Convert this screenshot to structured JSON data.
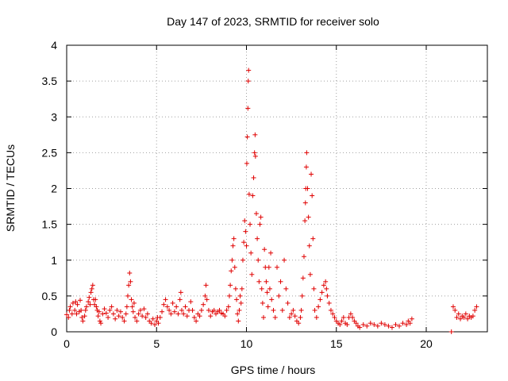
{
  "chart_data": {
    "type": "scatter",
    "title": "Day 147 of 2023, SRMTID for receiver solo",
    "xlabel": "GPS time / hours",
    "ylabel": "SRMTID / TECUs",
    "xlim": [
      0,
      23.4
    ],
    "ylim": [
      0,
      4
    ],
    "xticks": [
      0,
      5,
      10,
      15,
      20
    ],
    "yticks": [
      0,
      0.5,
      1,
      1.5,
      2,
      2.5,
      3,
      3.5,
      4
    ],
    "xtick_labels": [
      "0",
      "5",
      "10",
      "15",
      "20"
    ],
    "ytick_labels": [
      "0",
      "0.5",
      "1",
      "1.5",
      "2",
      "2.5",
      "3",
      "3.5",
      "4"
    ],
    "grid": true,
    "marker": "+",
    "color": "#e00000",
    "series": [
      {
        "name": "SRMTID",
        "points": [
          [
            0.0,
            0.24
          ],
          [
            0.1,
            0.2
          ],
          [
            0.15,
            0.3
          ],
          [
            0.2,
            0.35
          ],
          [
            0.3,
            0.25
          ],
          [
            0.35,
            0.4
          ],
          [
            0.45,
            0.3
          ],
          [
            0.5,
            0.42
          ],
          [
            0.55,
            0.25
          ],
          [
            0.6,
            0.38
          ],
          [
            0.7,
            0.28
          ],
          [
            0.75,
            0.44
          ],
          [
            0.8,
            0.3
          ],
          [
            0.85,
            0.2
          ],
          [
            0.9,
            0.15
          ],
          [
            1.0,
            0.22
          ],
          [
            1.05,
            0.3
          ],
          [
            1.1,
            0.35
          ],
          [
            1.2,
            0.42
          ],
          [
            1.25,
            0.48
          ],
          [
            1.3,
            0.38
          ],
          [
            1.35,
            0.55
          ],
          [
            1.4,
            0.6
          ],
          [
            1.45,
            0.65
          ],
          [
            1.5,
            0.45
          ],
          [
            1.55,
            0.38
          ],
          [
            1.6,
            0.45
          ],
          [
            1.65,
            0.35
          ],
          [
            1.7,
            0.3
          ],
          [
            1.75,
            0.22
          ],
          [
            1.8,
            0.28
          ],
          [
            1.85,
            0.15
          ],
          [
            1.9,
            0.12
          ],
          [
            2.0,
            0.25
          ],
          [
            2.1,
            0.32
          ],
          [
            2.2,
            0.26
          ],
          [
            2.3,
            0.2
          ],
          [
            2.4,
            0.3
          ],
          [
            2.5,
            0.35
          ],
          [
            2.6,
            0.25
          ],
          [
            2.7,
            0.18
          ],
          [
            2.8,
            0.3
          ],
          [
            2.9,
            0.22
          ],
          [
            3.0,
            0.28
          ],
          [
            3.1,
            0.2
          ],
          [
            3.2,
            0.15
          ],
          [
            3.3,
            0.25
          ],
          [
            3.35,
            0.35
          ],
          [
            3.4,
            0.5
          ],
          [
            3.45,
            0.65
          ],
          [
            3.5,
            0.82
          ],
          [
            3.55,
            0.7
          ],
          [
            3.6,
            0.45
          ],
          [
            3.65,
            0.35
          ],
          [
            3.7,
            0.28
          ],
          [
            3.75,
            0.4
          ],
          [
            3.8,
            0.2
          ],
          [
            3.9,
            0.15
          ],
          [
            4.0,
            0.25
          ],
          [
            4.1,
            0.3
          ],
          [
            4.2,
            0.22
          ],
          [
            4.3,
            0.32
          ],
          [
            4.4,
            0.2
          ],
          [
            4.5,
            0.25
          ],
          [
            4.6,
            0.15
          ],
          [
            4.7,
            0.12
          ],
          [
            4.8,
            0.18
          ],
          [
            4.9,
            0.1
          ],
          [
            5.0,
            0.15
          ],
          [
            5.05,
            0.2
          ],
          [
            5.1,
            0.12
          ],
          [
            5.2,
            0.2
          ],
          [
            5.3,
            0.28
          ],
          [
            5.4,
            0.38
          ],
          [
            5.5,
            0.45
          ],
          [
            5.6,
            0.35
          ],
          [
            5.7,
            0.3
          ],
          [
            5.8,
            0.25
          ],
          [
            5.9,
            0.4
          ],
          [
            6.0,
            0.28
          ],
          [
            6.1,
            0.35
          ],
          [
            6.2,
            0.25
          ],
          [
            6.3,
            0.45
          ],
          [
            6.35,
            0.55
          ],
          [
            6.4,
            0.3
          ],
          [
            6.5,
            0.25
          ],
          [
            6.6,
            0.35
          ],
          [
            6.7,
            0.22
          ],
          [
            6.8,
            0.3
          ],
          [
            6.9,
            0.42
          ],
          [
            7.0,
            0.3
          ],
          [
            7.1,
            0.2
          ],
          [
            7.2,
            0.15
          ],
          [
            7.3,
            0.25
          ],
          [
            7.4,
            0.22
          ],
          [
            7.5,
            0.3
          ],
          [
            7.6,
            0.38
          ],
          [
            7.7,
            0.5
          ],
          [
            7.75,
            0.65
          ],
          [
            7.8,
            0.45
          ],
          [
            7.9,
            0.3
          ],
          [
            8.0,
            0.22
          ],
          [
            8.1,
            0.28
          ],
          [
            8.2,
            0.3
          ],
          [
            8.3,
            0.25
          ],
          [
            8.4,
            0.28
          ],
          [
            8.5,
            0.3
          ],
          [
            8.6,
            0.26
          ],
          [
            8.7,
            0.25
          ],
          [
            8.8,
            0.22
          ],
          [
            8.9,
            0.3
          ],
          [
            9.0,
            0.35
          ],
          [
            9.05,
            0.5
          ],
          [
            9.1,
            0.65
          ],
          [
            9.15,
            0.85
          ],
          [
            9.2,
            1.0
          ],
          [
            9.25,
            1.2
          ],
          [
            9.3,
            1.3
          ],
          [
            9.35,
            0.9
          ],
          [
            9.4,
            0.6
          ],
          [
            9.45,
            0.45
          ],
          [
            9.5,
            0.25
          ],
          [
            9.55,
            0.15
          ],
          [
            9.6,
            0.3
          ],
          [
            9.65,
            0.5
          ],
          [
            9.7,
            0.4
          ],
          [
            9.75,
            0.6
          ],
          [
            9.8,
            1.0
          ],
          [
            9.85,
            1.25
          ],
          [
            9.9,
            1.55
          ],
          [
            9.95,
            1.4
          ],
          [
            10.0,
            1.2
          ],
          [
            10.02,
            2.35
          ],
          [
            10.05,
            2.72
          ],
          [
            10.08,
            3.12
          ],
          [
            10.1,
            3.5
          ],
          [
            10.12,
            3.65
          ],
          [
            10.15,
            1.92
          ],
          [
            10.2,
            1.5
          ],
          [
            10.25,
            1.1
          ],
          [
            10.3,
            0.8
          ],
          [
            10.35,
            1.9
          ],
          [
            10.4,
            2.15
          ],
          [
            10.45,
            2.5
          ],
          [
            10.48,
            2.75
          ],
          [
            10.5,
            2.45
          ],
          [
            10.55,
            1.65
          ],
          [
            10.6,
            1.3
          ],
          [
            10.65,
            1.0
          ],
          [
            10.7,
            0.7
          ],
          [
            10.75,
            1.5
          ],
          [
            10.8,
            1.6
          ],
          [
            10.85,
            0.6
          ],
          [
            10.9,
            0.4
          ],
          [
            10.95,
            0.2
          ],
          [
            11.0,
            1.15
          ],
          [
            11.05,
            0.9
          ],
          [
            11.1,
            0.7
          ],
          [
            11.15,
            0.55
          ],
          [
            11.2,
            0.35
          ],
          [
            11.25,
            0.9
          ],
          [
            11.3,
            0.6
          ],
          [
            11.35,
            1.1
          ],
          [
            11.4,
            0.45
          ],
          [
            11.5,
            0.3
          ],
          [
            11.6,
            0.2
          ],
          [
            11.7,
            0.9
          ],
          [
            11.8,
            0.5
          ],
          [
            11.9,
            0.7
          ],
          [
            12.0,
            0.3
          ],
          [
            12.1,
            1.0
          ],
          [
            12.2,
            0.6
          ],
          [
            12.3,
            0.4
          ],
          [
            12.4,
            0.2
          ],
          [
            12.5,
            0.25
          ],
          [
            12.6,
            0.3
          ],
          [
            12.7,
            0.22
          ],
          [
            12.8,
            0.15
          ],
          [
            12.9,
            0.12
          ],
          [
            13.0,
            0.2
          ],
          [
            13.05,
            0.3
          ],
          [
            13.1,
            0.5
          ],
          [
            13.15,
            0.75
          ],
          [
            13.2,
            1.05
          ],
          [
            13.25,
            1.55
          ],
          [
            13.28,
            1.8
          ],
          [
            13.3,
            2.0
          ],
          [
            13.33,
            2.3
          ],
          [
            13.35,
            2.5
          ],
          [
            13.4,
            2.0
          ],
          [
            13.45,
            1.6
          ],
          [
            13.5,
            1.2
          ],
          [
            13.55,
            0.8
          ],
          [
            13.6,
            2.2
          ],
          [
            13.65,
            1.9
          ],
          [
            13.7,
            1.3
          ],
          [
            13.75,
            0.6
          ],
          [
            13.8,
            0.3
          ],
          [
            13.9,
            0.2
          ],
          [
            14.0,
            0.35
          ],
          [
            14.1,
            0.45
          ],
          [
            14.2,
            0.55
          ],
          [
            14.3,
            0.65
          ],
          [
            14.4,
            0.7
          ],
          [
            14.45,
            0.6
          ],
          [
            14.5,
            0.5
          ],
          [
            14.6,
            0.4
          ],
          [
            14.7,
            0.3
          ],
          [
            14.8,
            0.25
          ],
          [
            14.9,
            0.2
          ],
          [
            15.0,
            0.15
          ],
          [
            15.1,
            0.12
          ],
          [
            15.2,
            0.1
          ],
          [
            15.3,
            0.15
          ],
          [
            15.4,
            0.2
          ],
          [
            15.5,
            0.12
          ],
          [
            15.6,
            0.1
          ],
          [
            15.7,
            0.2
          ],
          [
            15.8,
            0.25
          ],
          [
            15.9,
            0.2
          ],
          [
            16.0,
            0.15
          ],
          [
            16.1,
            0.12
          ],
          [
            16.2,
            0.08
          ],
          [
            16.3,
            0.06
          ],
          [
            16.5,
            0.1
          ],
          [
            16.7,
            0.08
          ],
          [
            16.9,
            0.12
          ],
          [
            17.1,
            0.1
          ],
          [
            17.3,
            0.08
          ],
          [
            17.5,
            0.12
          ],
          [
            17.7,
            0.1
          ],
          [
            17.9,
            0.08
          ],
          [
            18.1,
            0.06
          ],
          [
            18.3,
            0.1
          ],
          [
            18.5,
            0.08
          ],
          [
            18.7,
            0.12
          ],
          [
            18.9,
            0.1
          ],
          [
            19.0,
            0.15
          ],
          [
            19.1,
            0.12
          ],
          [
            19.2,
            0.18
          ],
          [
            21.4,
            0.0
          ],
          [
            21.5,
            0.35
          ],
          [
            21.6,
            0.3
          ],
          [
            21.7,
            0.2
          ],
          [
            21.8,
            0.25
          ],
          [
            21.9,
            0.18
          ],
          [
            22.0,
            0.22
          ],
          [
            22.1,
            0.2
          ],
          [
            22.2,
            0.25
          ],
          [
            22.3,
            0.18
          ],
          [
            22.4,
            0.22
          ],
          [
            22.5,
            0.2
          ],
          [
            22.6,
            0.22
          ],
          [
            22.7,
            0.3
          ],
          [
            22.8,
            0.35
          ]
        ]
      }
    ]
  }
}
